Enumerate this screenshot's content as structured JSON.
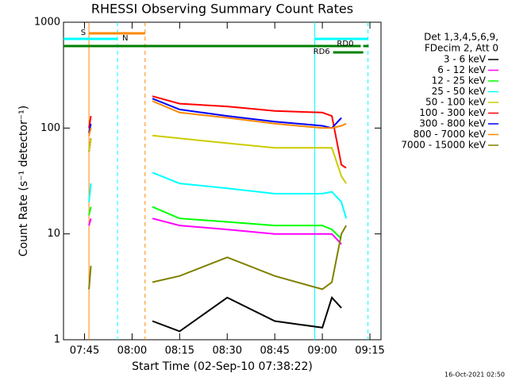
{
  "chart_data": {
    "type": "line",
    "title": "RHESSI Observing Summary Count Rates",
    "x_label": "Start Time (02-Sep-10 07:38:22)",
    "y_label": "Count Rate (s⁻¹ detector⁻¹)",
    "footer": "16-Oct-2021 02:50",
    "legend_header": [
      "Det 1,3,4,5,6,9,",
      "FDecim 2, Att 0"
    ],
    "log_y": true,
    "xlim": [
      458.37,
      558.5
    ],
    "ylim": [
      1,
      1000
    ],
    "xticks": [
      {
        "value": 465,
        "label": "07:45"
      },
      {
        "value": 480,
        "label": "08:00"
      },
      {
        "value": 495,
        "label": "08:15"
      },
      {
        "value": 510,
        "label": "08:30"
      },
      {
        "value": 525,
        "label": "08:45"
      },
      {
        "value": 540,
        "label": "09:00"
      },
      {
        "value": 555,
        "label": "09:15"
      }
    ],
    "yticks": [
      1,
      10,
      100,
      1000
    ],
    "x": [
      466.4,
      467.0,
      476,
      486.4,
      495,
      510,
      525,
      540,
      543,
      546,
      547.5
    ],
    "series": [
      {
        "name": "3 - 6 keV",
        "color": "#000000",
        "values": [
          60,
          80,
          null,
          1.5,
          1.2,
          2.5,
          1.5,
          1.3,
          2.5,
          2,
          null
        ]
      },
      {
        "name": "6 - 12 keV",
        "color": "#ff00ff",
        "values": [
          12,
          14,
          null,
          14,
          12,
          11,
          10,
          10,
          10,
          8,
          null
        ]
      },
      {
        "name": "12 - 25 keV",
        "color": "#00ff00",
        "values": [
          15,
          18,
          null,
          18,
          14,
          13,
          12,
          12,
          11,
          9,
          null
        ]
      },
      {
        "name": "25 - 50 keV",
        "color": "#00ffff",
        "values": [
          20,
          30,
          null,
          38,
          30,
          27,
          24,
          24,
          25,
          20,
          14
        ]
      },
      {
        "name": "50 - 100 keV",
        "color": "#cccc00",
        "values": [
          60,
          80,
          null,
          85,
          80,
          72,
          65,
          65,
          65,
          35,
          30
        ]
      },
      {
        "name": "100 - 300 keV",
        "color": "#ff0000",
        "values": [
          100,
          130,
          null,
          200,
          170,
          160,
          145,
          140,
          130,
          45,
          42
        ]
      },
      {
        "name": "300 - 800 keV",
        "color": "#0000ff",
        "values": [
          90,
          110,
          null,
          190,
          150,
          130,
          115,
          105,
          100,
          125,
          null
        ]
      },
      {
        "name": "800 - 7000 keV",
        "color": "#ff8800",
        "values": [
          85,
          100,
          null,
          180,
          140,
          125,
          110,
          100,
          100,
          105,
          110
        ]
      },
      {
        "name": "7000 - 15000 keV",
        "color": "#808000",
        "values": [
          3,
          5,
          null,
          3.5,
          4,
          6,
          4,
          3,
          3.5,
          10,
          12
        ]
      }
    ],
    "flags": [
      {
        "text": "S",
        "start": 466.4,
        "end": 484.1,
        "color": "#ff8800"
      },
      {
        "text": "N",
        "start": 458.37,
        "end": 475.4,
        "color": "#00ffff"
      },
      {
        "start": 537.6,
        "end": 554.4,
        "color": "#00ffff"
      },
      {
        "text": "RD0",
        "start": 458.37,
        "end": 552.1,
        "color": "#008000"
      },
      {
        "start": 552.9,
        "end": 554.6,
        "color": "#008000"
      },
      {
        "text": "RD6",
        "start": 543.4,
        "end": 552.9,
        "color": "#008000"
      }
    ],
    "markers": [
      {
        "x": 466.4,
        "color": "#ff8800",
        "dashed": false
      },
      {
        "x": 475.4,
        "color": "#00ffff",
        "dashed": true
      },
      {
        "x": 484.1,
        "color": "#ff8800",
        "dashed": true
      },
      {
        "x": 537.6,
        "color": "#00ffff",
        "dashed": false
      },
      {
        "x": 554.4,
        "color": "#00ffff",
        "dashed": true
      }
    ]
  }
}
